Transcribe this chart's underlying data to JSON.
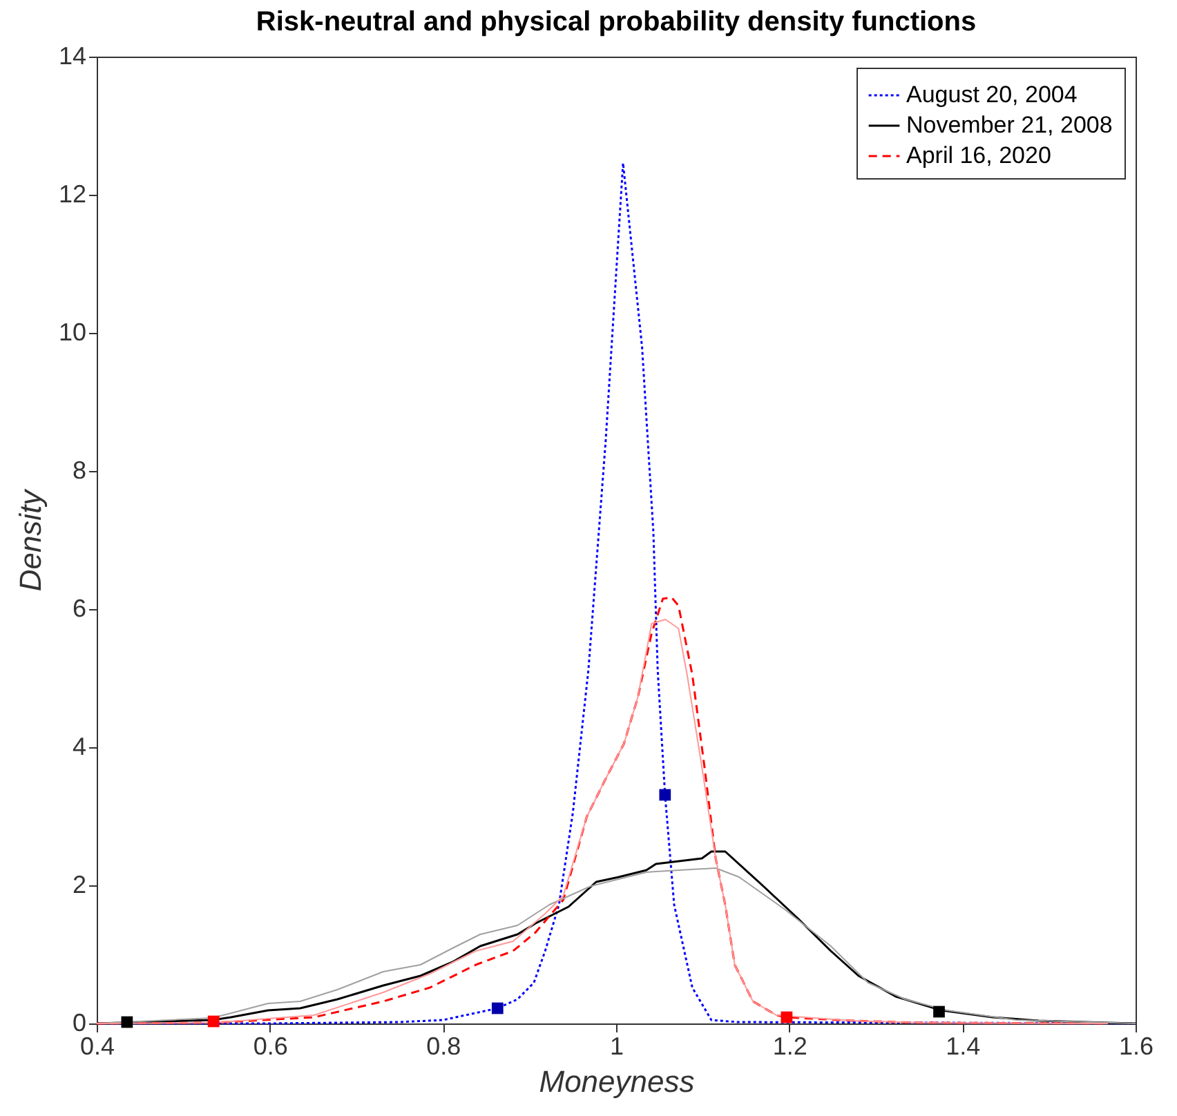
{
  "chart_data": {
    "type": "line",
    "title": "Risk-neutral and physical probability density functions",
    "xlabel": "Moneyness",
    "ylabel": "Density",
    "xlim": [
      0.4,
      1.6
    ],
    "xticks": [
      0.4,
      0.6,
      0.8,
      1,
      1.2,
      1.4,
      1.6
    ],
    "ylim": [
      0,
      14
    ],
    "yticks": [
      0,
      2,
      4,
      6,
      8,
      10,
      12,
      14
    ],
    "grid": false,
    "legend": "top right",
    "series": [
      {
        "name": "August 20, 2004",
        "color": "#0000ff",
        "line_style": "dotted",
        "x": [
          0.4,
          0.6,
          0.75,
          0.8,
          0.863,
          0.886,
          0.905,
          0.918,
          0.934,
          0.95,
          0.968,
          0.988,
          1.008,
          1.03,
          1.043,
          1.048,
          1.0565,
          1.067,
          1.088,
          1.11,
          1.14,
          1.6
        ],
        "values": [
          0,
          0,
          0.02,
          0.05,
          0.22,
          0.35,
          0.59,
          1.05,
          1.72,
          3.05,
          5.12,
          8.45,
          12.46,
          9.79,
          7.12,
          5.12,
          3.31,
          1.72,
          0.52,
          0.05,
          0.02,
          0
        ]
      },
      {
        "name": "November 21, 2008",
        "color": "#000000",
        "line_style": "solid",
        "x": [
          0.4,
          0.534,
          0.555,
          0.598,
          0.635,
          0.678,
          0.731,
          0.774,
          0.811,
          0.843,
          0.886,
          0.907,
          0.945,
          0.977,
          1.003,
          1.035,
          1.046,
          1.099,
          1.11,
          1.126,
          1.169,
          1.21,
          1.248,
          1.28,
          1.323,
          1.376,
          1.435,
          1.488,
          1.568,
          1.6
        ],
        "values": [
          0,
          0.05,
          0.09,
          0.19,
          0.22,
          0.35,
          0.55,
          0.69,
          0.89,
          1.12,
          1.29,
          1.45,
          1.69,
          2.05,
          2.12,
          2.22,
          2.31,
          2.39,
          2.49,
          2.49,
          2.0,
          1.52,
          1.05,
          0.69,
          0.39,
          0.19,
          0.09,
          0.04,
          0.01,
          0
        ]
      },
      {
        "name": "April 16, 2020",
        "color": "#ff0000",
        "line_style": "dashed",
        "x": [
          0.4,
          0.534,
          0.651,
          0.731,
          0.785,
          0.838,
          0.881,
          0.907,
          0.939,
          0.966,
          0.987,
          1.009,
          1.025,
          1.041,
          1.054,
          1.064,
          1.072,
          1.088,
          1.102,
          1.115,
          1.126,
          1.137,
          1.158,
          1.185,
          1.197,
          1.272,
          1.352,
          1.568
        ],
        "values": [
          0,
          0.01,
          0.09,
          0.32,
          0.52,
          0.85,
          1.05,
          1.32,
          1.79,
          2.99,
          3.52,
          4.05,
          4.72,
          5.65,
          6.15,
          6.17,
          6.05,
          5.05,
          3.72,
          2.39,
          1.72,
          0.85,
          0.32,
          0.12,
          0.09,
          0.04,
          0.01,
          0
        ]
      },
      {
        "color": "#a0a0a0",
        "line_style": "solid",
        "x": [
          0.4,
          0.534,
          0.598,
          0.635,
          0.678,
          0.731,
          0.774,
          0.811,
          0.843,
          0.886,
          0.923,
          0.971,
          1.035,
          1.046,
          1.115,
          1.142,
          1.195,
          1.248,
          1.291,
          1.334,
          1.382,
          1.462,
          1.6
        ],
        "values": [
          0,
          0.08,
          0.29,
          0.32,
          0.49,
          0.75,
          0.85,
          1.09,
          1.29,
          1.42,
          1.72,
          1.99,
          2.19,
          2.2,
          2.25,
          2.12,
          1.65,
          1.12,
          0.59,
          0.35,
          0.19,
          0.05,
          0
        ]
      },
      {
        "color": "#ff9999",
        "line_style": "solid",
        "x": [
          0.4,
          0.534,
          0.651,
          0.731,
          0.785,
          0.838,
          0.881,
          0.918,
          0.939,
          0.966,
          0.987,
          1.009,
          1.025,
          1.041,
          1.057,
          1.072,
          1.082,
          1.099,
          1.115,
          1.126,
          1.137,
          1.158,
          1.185,
          1.272,
          1.352,
          1.568
        ],
        "values": [
          0,
          0.01,
          0.12,
          0.45,
          0.72,
          1.05,
          1.19,
          1.59,
          1.85,
          2.99,
          3.52,
          4.05,
          4.72,
          5.79,
          5.85,
          5.72,
          5.05,
          3.72,
          2.39,
          1.72,
          0.85,
          0.32,
          0.12,
          0.04,
          0.01,
          0
        ]
      },
      {
        "type": "scatter",
        "marker": "square",
        "color": "#0000aa",
        "x": [
          0.863,
          1.0565
        ],
        "values": [
          0.22,
          3.31
        ]
      },
      {
        "type": "scatter",
        "marker": "square",
        "color": "#000000",
        "x": [
          0.435,
          1.373
        ],
        "values": [
          0.02,
          0.17
        ]
      },
      {
        "type": "scatter",
        "marker": "square",
        "color": "#ff0000",
        "x": [
          0.535,
          1.197
        ],
        "values": [
          0.03,
          0.09
        ]
      }
    ]
  }
}
